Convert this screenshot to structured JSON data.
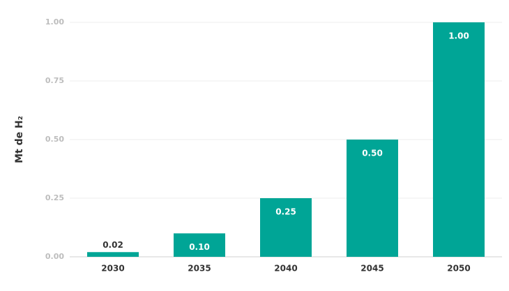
{
  "chart_data": {
    "type": "bar",
    "y_label": "Mt de H₂",
    "categories": [
      "2030",
      "2035",
      "2040",
      "2045",
      "2050"
    ],
    "values": [
      0.02,
      0.1,
      0.25,
      0.5,
      1.0
    ],
    "value_labels": [
      "0.02",
      "0.10",
      "0.25",
      "0.50",
      "1.00"
    ],
    "color": "#00a596",
    "ylim": [
      0,
      1
    ],
    "yticks": [
      {
        "value": 0,
        "label": "0.00"
      },
      0.25,
      {
        "value": 0.5,
        "label": "0.50"
      },
      0.75,
      {
        "value": 1,
        "label": "1.00"
      }
    ],
    "grid": true
  }
}
